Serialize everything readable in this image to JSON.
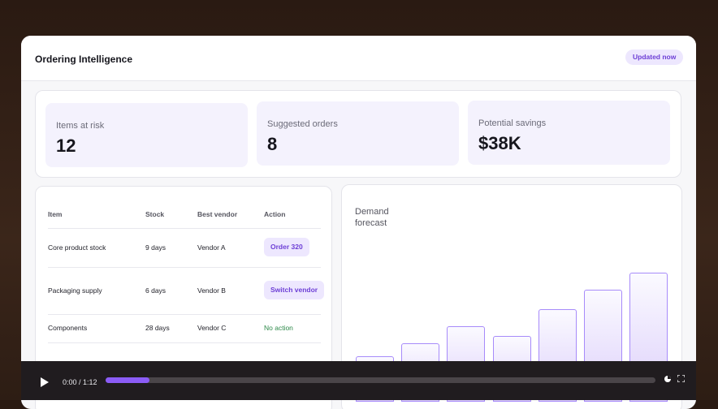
{
  "header": {
    "title": "Ordering Intelligence",
    "badge": "Updated now"
  },
  "kpis": [
    {
      "label": "Items at risk",
      "value": "12"
    },
    {
      "label": "Suggested orders",
      "value": "8"
    },
    {
      "label": "Potential savings",
      "value": "$38K"
    }
  ],
  "table": {
    "columns": [
      "Item",
      "Stock",
      "Best vendor",
      "Action"
    ],
    "rows": [
      [
        "Core product stock",
        "9 days",
        "Vendor A",
        "Order 320"
      ],
      [
        "Packaging supply",
        "6 days",
        "Vendor B",
        "Switch vendor"
      ],
      [
        "Components",
        "28 days",
        "Vendor C",
        "No action"
      ]
    ]
  },
  "chart_data": {
    "type": "bar",
    "title": "Demand forecast",
    "values": [
      56,
      72,
      93,
      81,
      114,
      138,
      159
    ],
    "color": "#a78bfa"
  },
  "player": {
    "time": "0:00 / 1:12"
  }
}
